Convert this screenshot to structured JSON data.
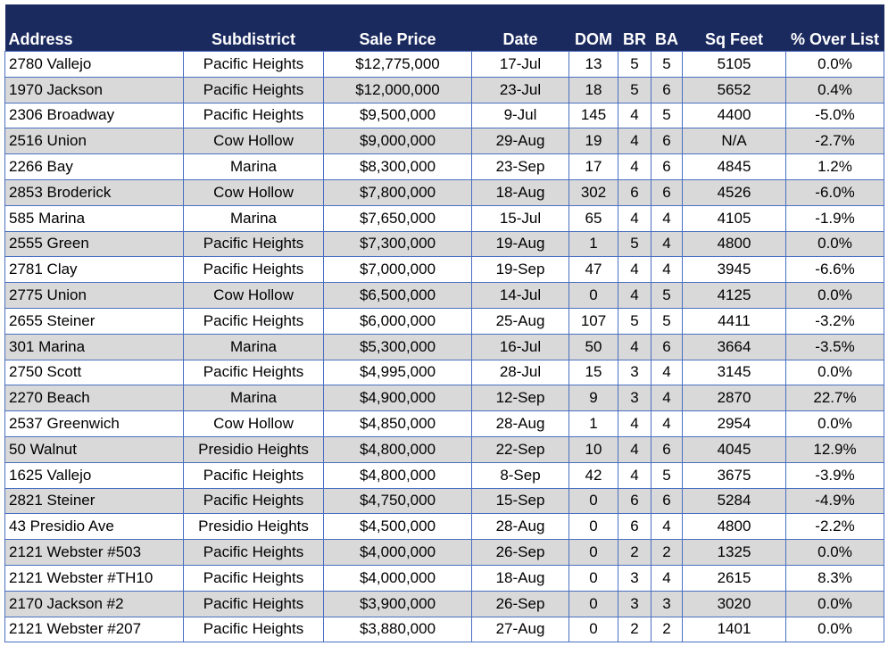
{
  "table": {
    "columns": [
      "Address",
      "Subdistrict",
      "Sale Price",
      "Date",
      "DOM",
      "BR",
      "BA",
      "Sq Feet",
      "% Over List"
    ],
    "rows": [
      [
        "2780 Vallejo",
        "Pacific Heights",
        "$12,775,000",
        "17-Jul",
        "13",
        "5",
        "5",
        "5105",
        "0.0%"
      ],
      [
        "1970 Jackson",
        "Pacific Heights",
        "$12,000,000",
        "23-Jul",
        "18",
        "5",
        "6",
        "5652",
        "0.4%"
      ],
      [
        "2306 Broadway",
        "Pacific Heights",
        "$9,500,000",
        "9-Jul",
        "145",
        "4",
        "5",
        "4400",
        "-5.0%"
      ],
      [
        "2516 Union",
        "Cow Hollow",
        "$9,000,000",
        "29-Aug",
        "19",
        "4",
        "6",
        "N/A",
        "-2.7%"
      ],
      [
        "2266 Bay",
        "Marina",
        "$8,300,000",
        "23-Sep",
        "17",
        "4",
        "6",
        "4845",
        "1.2%"
      ],
      [
        "2853 Broderick",
        "Cow Hollow",
        "$7,800,000",
        "18-Aug",
        "302",
        "6",
        "6",
        "4526",
        "-6.0%"
      ],
      [
        "585 Marina",
        "Marina",
        "$7,650,000",
        "15-Jul",
        "65",
        "4",
        "4",
        "4105",
        "-1.9%"
      ],
      [
        "2555 Green",
        "Pacific Heights",
        "$7,300,000",
        "19-Aug",
        "1",
        "5",
        "4",
        "4800",
        "0.0%"
      ],
      [
        "2781 Clay",
        "Pacific Heights",
        "$7,000,000",
        "19-Sep",
        "47",
        "4",
        "4",
        "3945",
        "-6.6%"
      ],
      [
        "2775 Union",
        "Cow Hollow",
        "$6,500,000",
        "14-Jul",
        "0",
        "4",
        "5",
        "4125",
        "0.0%"
      ],
      [
        "2655 Steiner",
        "Pacific Heights",
        "$6,000,000",
        "25-Aug",
        "107",
        "5",
        "5",
        "4411",
        "-3.2%"
      ],
      [
        "301 Marina",
        "Marina",
        "$5,300,000",
        "16-Jul",
        "50",
        "4",
        "6",
        "3664",
        "-3.5%"
      ],
      [
        "2750 Scott",
        "Pacific Heights",
        "$4,995,000",
        "28-Jul",
        "15",
        "3",
        "4",
        "3145",
        "0.0%"
      ],
      [
        "2270 Beach",
        "Marina",
        "$4,900,000",
        "12-Sep",
        "9",
        "3",
        "4",
        "2870",
        "22.7%"
      ],
      [
        "2537 Greenwich",
        "Cow Hollow",
        "$4,850,000",
        "28-Aug",
        "1",
        "4",
        "4",
        "2954",
        "0.0%"
      ],
      [
        "50 Walnut",
        "Presidio Heights",
        "$4,800,000",
        "22-Sep",
        "10",
        "4",
        "6",
        "4045",
        "12.9%"
      ],
      [
        "1625 Vallejo",
        "Pacific Heights",
        "$4,800,000",
        "8-Sep",
        "42",
        "4",
        "5",
        "3675",
        "-3.9%"
      ],
      [
        "2821 Steiner",
        "Pacific Heights",
        "$4,750,000",
        "15-Sep",
        "0",
        "6",
        "6",
        "5284",
        "-4.9%"
      ],
      [
        "43 Presidio Ave",
        "Presidio Heights",
        "$4,500,000",
        "28-Aug",
        "0",
        "6",
        "4",
        "4800",
        "-2.2%"
      ],
      [
        "2121 Webster #503",
        "Pacific Heights",
        "$4,000,000",
        "26-Sep",
        "0",
        "2",
        "2",
        "1325",
        "0.0%"
      ],
      [
        "2121 Webster #TH10",
        "Pacific Heights",
        "$4,000,000",
        "18-Aug",
        "0",
        "3",
        "4",
        "2615",
        "8.3%"
      ],
      [
        "2170 Jackson #2",
        "Pacific Heights",
        "$3,900,000",
        "26-Sep",
        "0",
        "3",
        "3",
        "3020",
        "0.0%"
      ],
      [
        "2121 Webster #207",
        "Pacific Heights",
        "$3,880,000",
        "27-Aug",
        "0",
        "2",
        "2",
        "1401",
        "0.0%"
      ]
    ]
  }
}
